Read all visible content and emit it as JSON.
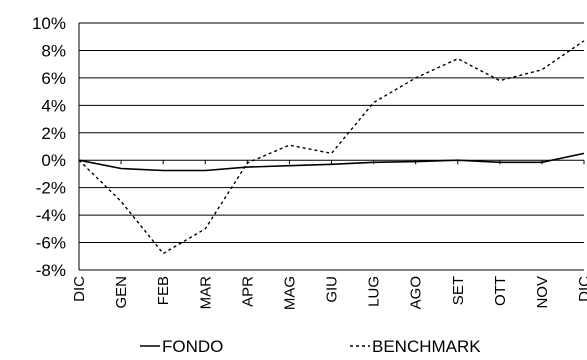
{
  "chart_data": {
    "type": "line",
    "categories": [
      "DIC",
      "GEN",
      "FEB",
      "MAR",
      "APR",
      "MAG",
      "GIU",
      "LUG",
      "AGO",
      "SET",
      "OTT",
      "NOV",
      "DIC"
    ],
    "series": [
      {
        "name": "FONDO",
        "style": "solid",
        "color": "#000000",
        "values": [
          0.0,
          -0.6,
          -0.75,
          -0.75,
          -0.5,
          -0.4,
          -0.3,
          -0.15,
          -0.1,
          0.0,
          -0.15,
          -0.15,
          0.5
        ]
      },
      {
        "name": "BENCHMARK",
        "style": "dashed",
        "color": "#000000",
        "values": [
          0.0,
          -3.0,
          -6.8,
          -5.0,
          -0.2,
          1.1,
          0.5,
          4.2,
          6.0,
          7.4,
          5.8,
          6.6,
          8.7
        ]
      }
    ],
    "ylim": [
      -8,
      10
    ],
    "yticks": [
      "10%",
      "8%",
      "6%",
      "4%",
      "2%",
      "0%",
      "-2%",
      "-4%",
      "-6%",
      "-8%"
    ],
    "grid": true,
    "legend_position": "bottom"
  }
}
